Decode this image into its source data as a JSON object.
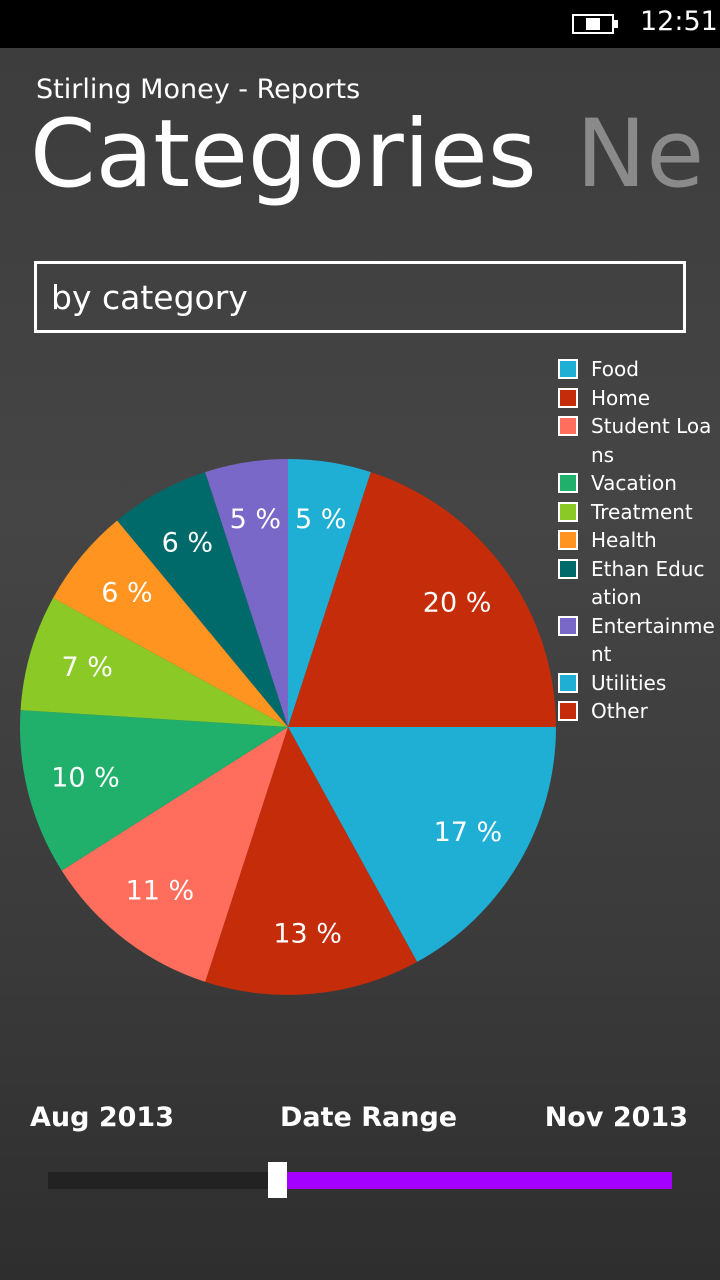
{
  "status_bar": {
    "time": "12:51"
  },
  "header": {
    "app_title": "Stirling Money - Reports",
    "pivots": [
      "Categories",
      "Ne"
    ]
  },
  "filter": {
    "selected": "by category"
  },
  "chart_data": {
    "type": "pie",
    "categories": [
      "Food",
      "Home",
      "Utilities",
      "Other",
      "Student Loans",
      "Vacation",
      "Treatment",
      "Health",
      "Ethan Education",
      "Entertainment"
    ],
    "values": [
      5,
      20,
      17,
      13,
      11,
      10,
      7,
      6,
      6,
      5
    ],
    "value_labels": [
      "5 %",
      "20 %",
      "17 %",
      "13 %",
      "11 %",
      "10 %",
      "7 %",
      "6 %",
      "6 %",
      "5 %"
    ],
    "colors": [
      "#1fafd4",
      "#c52c0a",
      "#1fafd4",
      "#c52c0a",
      "#ff6e5c",
      "#20b06c",
      "#8ac926",
      "#ff9520",
      "#006a6a",
      "#7a68c8"
    ],
    "legend": [
      "Food",
      "Home",
      "Student Loans",
      "Vacation",
      "Treatment",
      "Health",
      "Ethan Education",
      "Entertainment",
      "Utilities",
      "Other"
    ]
  },
  "date_range": {
    "start": "Aug 2013",
    "title": "Date Range",
    "end": "Nov 2013"
  }
}
